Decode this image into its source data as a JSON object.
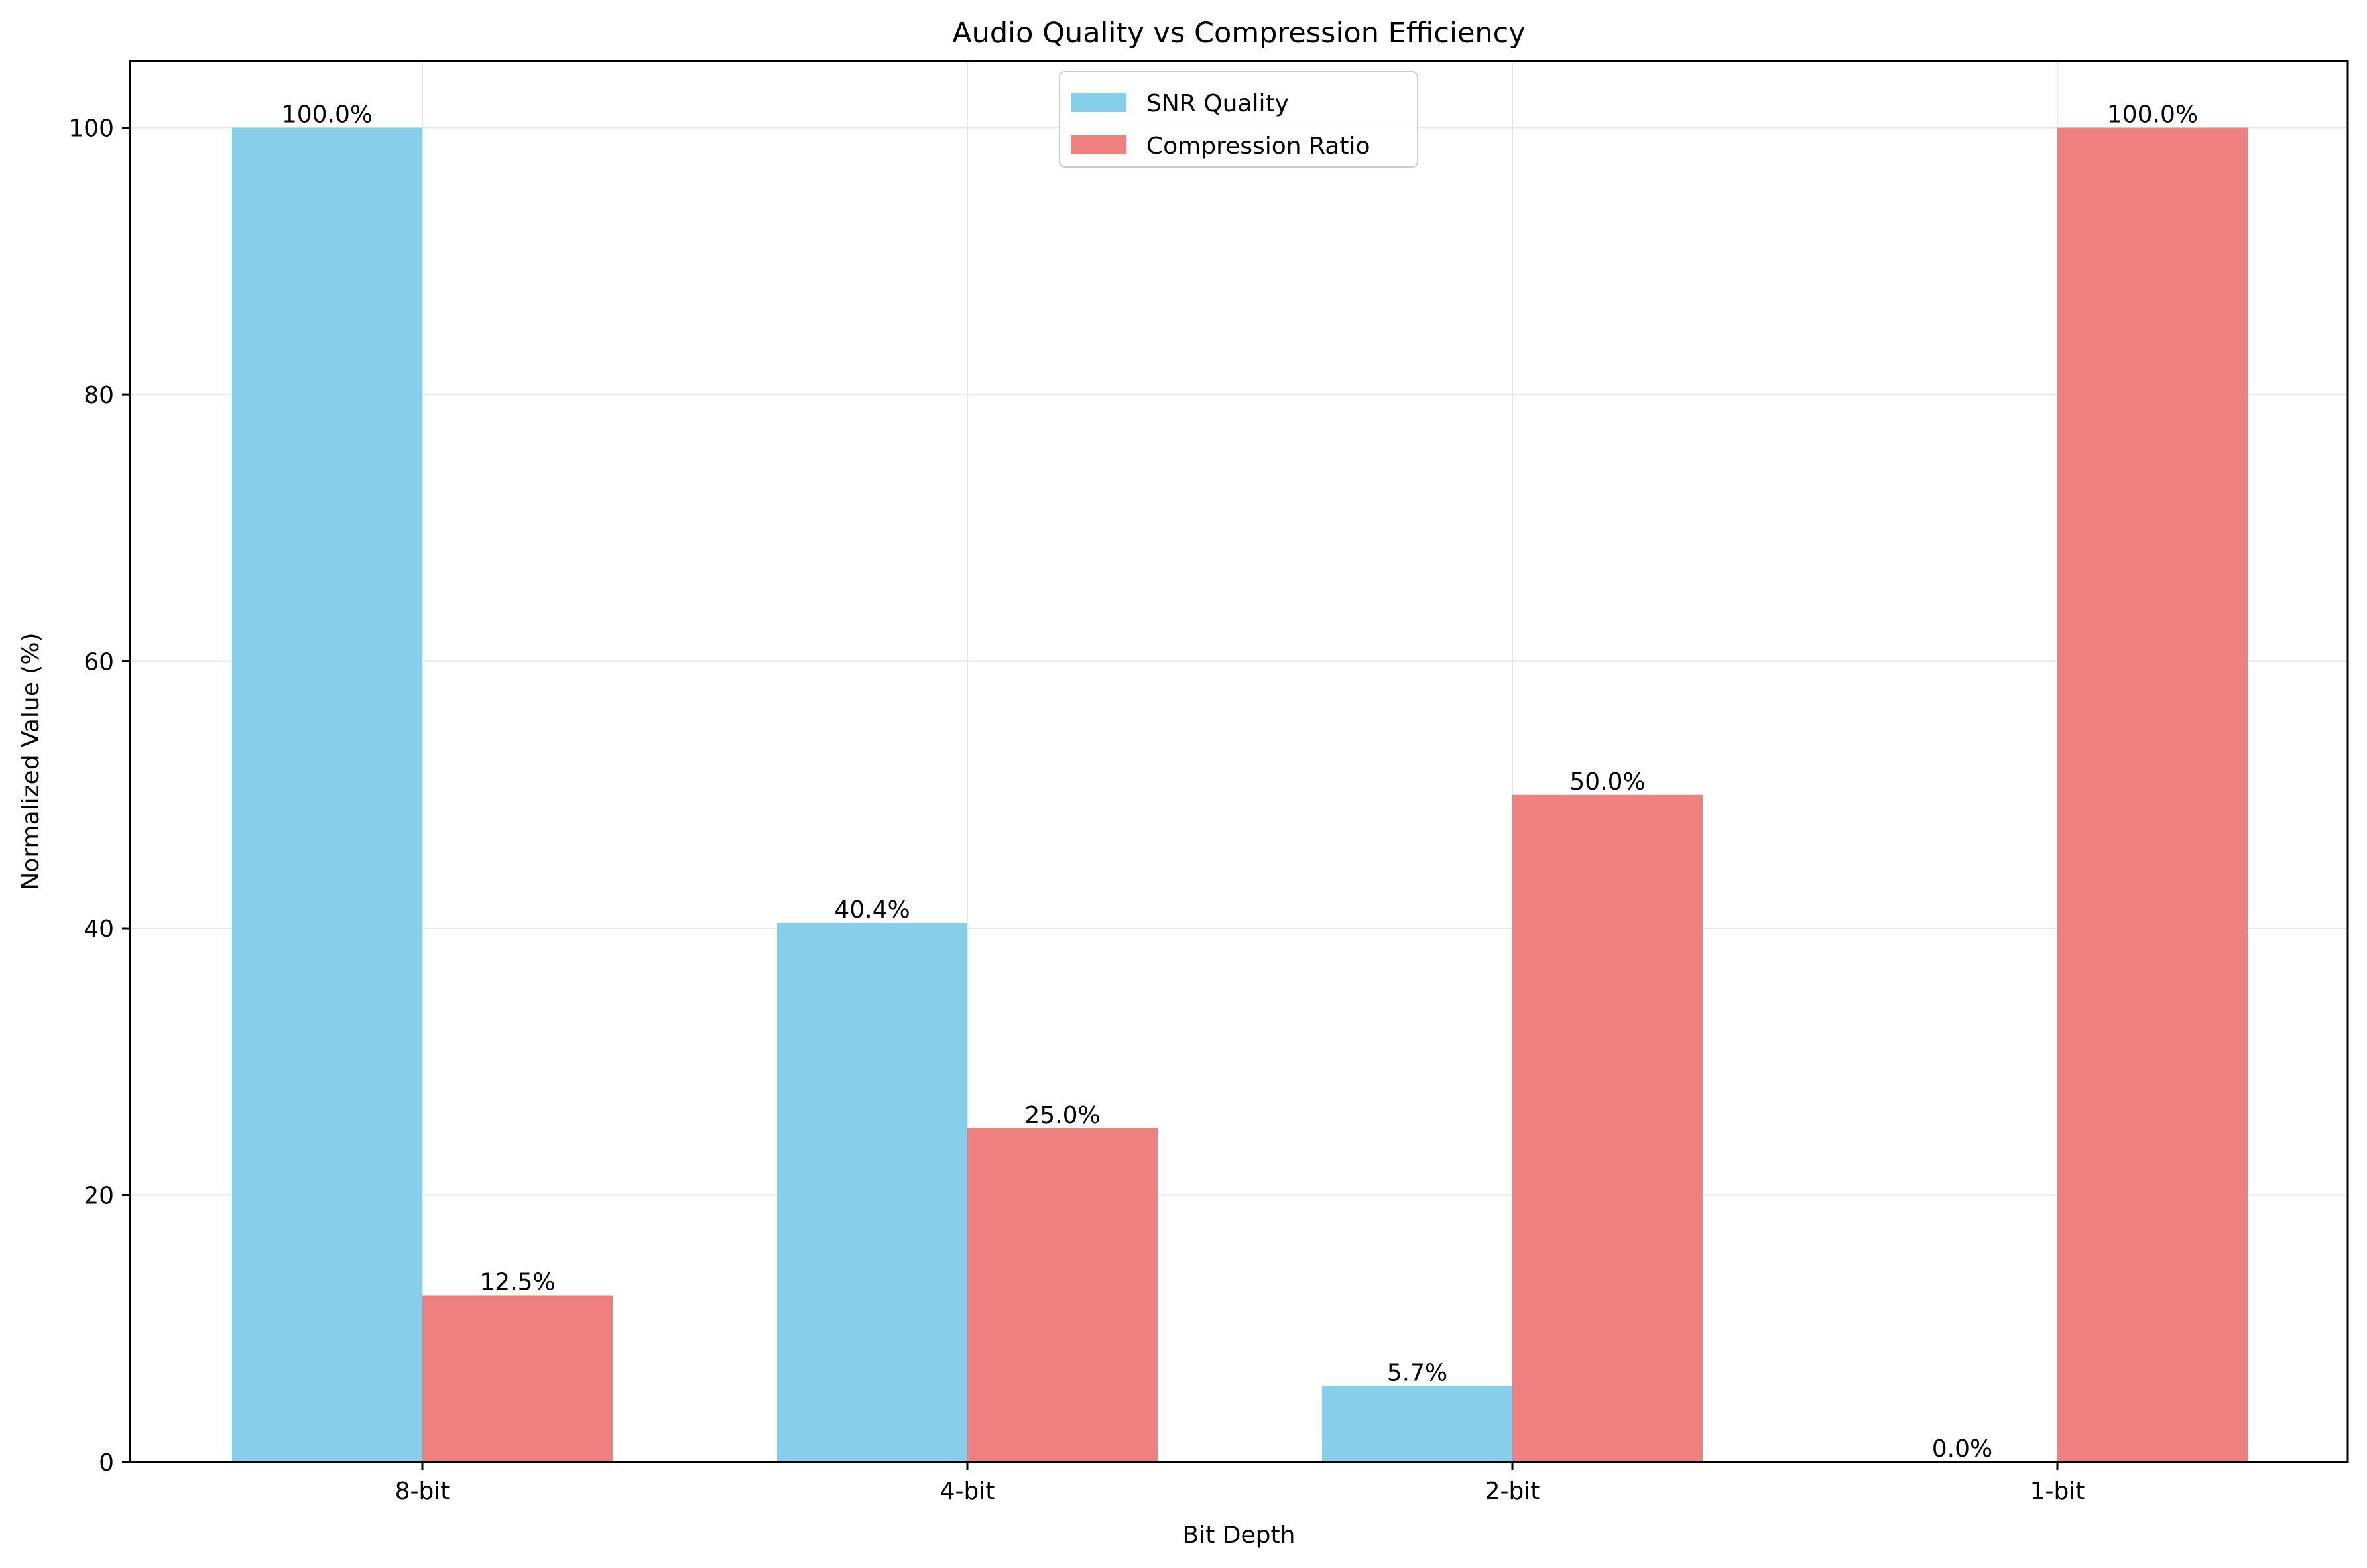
{
  "chart_data": {
    "type": "bar",
    "title": "Audio Quality vs Compression Efficiency",
    "xlabel": "Bit Depth",
    "ylabel": "Normalized Value (%)",
    "categories": [
      "8-bit",
      "4-bit",
      "2-bit",
      "1-bit"
    ],
    "series": [
      {
        "name": "SNR Quality",
        "color": "#87CEEB",
        "values": [
          100.0,
          40.4,
          5.7,
          0.0
        ],
        "labels": [
          "100.0%",
          "40.4%",
          "5.7%",
          "0.0%"
        ]
      },
      {
        "name": "Compression Ratio",
        "color": "#F08080",
        "values": [
          12.5,
          25.0,
          50.0,
          100.0
        ],
        "labels": [
          "12.5%",
          "25.0%",
          "50.0%",
          "100.0%"
        ]
      }
    ],
    "ylim": [
      0,
      105
    ],
    "yticks": [
      0,
      20,
      40,
      60,
      80,
      100
    ],
    "ytick_labels": [
      "0",
      "20",
      "40",
      "60",
      "80",
      "100"
    ],
    "grid": true,
    "legend_position": "top-center"
  }
}
